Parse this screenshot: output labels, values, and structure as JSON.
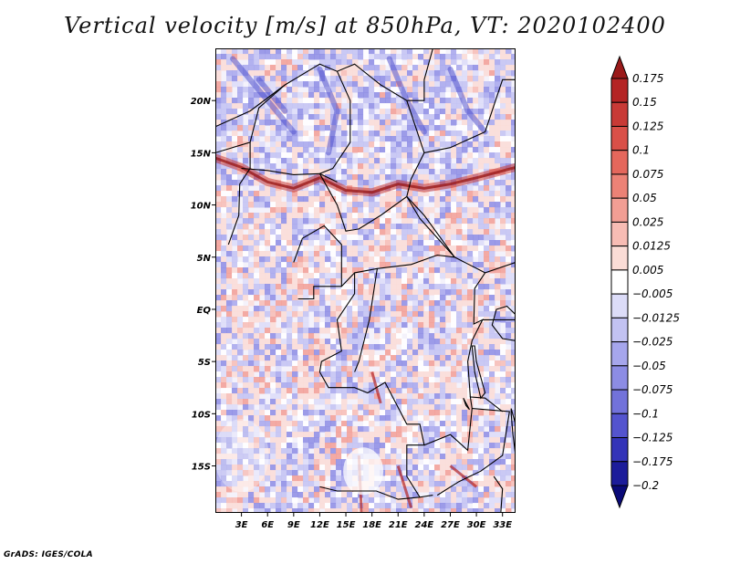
{
  "title": "Vertical velocity [m/s] at 850hPa, VT: 2020102400",
  "credit": "GrADS: IGES/COLA",
  "map": {
    "lon_range": [
      0,
      34.5
    ],
    "lat_range": [
      -19.5,
      25
    ],
    "lat_ticks": [
      {
        "value": 20,
        "label": "20N"
      },
      {
        "value": 15,
        "label": "15N"
      },
      {
        "value": 10,
        "label": "10N"
      },
      {
        "value": 5,
        "label": "5N"
      },
      {
        "value": 0,
        "label": "EQ"
      },
      {
        "value": -5,
        "label": "5S"
      },
      {
        "value": -10,
        "label": "10S"
      },
      {
        "value": -15,
        "label": "15S"
      }
    ],
    "lon_ticks": [
      {
        "value": 3,
        "label": "3E"
      },
      {
        "value": 6,
        "label": "6E"
      },
      {
        "value": 9,
        "label": "9E"
      },
      {
        "value": 12,
        "label": "12E"
      },
      {
        "value": 15,
        "label": "15E"
      },
      {
        "value": 18,
        "label": "18E"
      },
      {
        "value": 21,
        "label": "21E"
      },
      {
        "value": 24,
        "label": "24E"
      },
      {
        "value": 27,
        "label": "27E"
      },
      {
        "value": 30,
        "label": "30E"
      },
      {
        "value": 33,
        "label": "33E"
      }
    ]
  },
  "colorbar": {
    "labels": [
      "0.175",
      "0.15",
      "0.125",
      "0.1",
      "0.075",
      "0.05",
      "0.025",
      "0.0125",
      "0.005",
      "−0.005",
      "−0.0125",
      "−0.025",
      "−0.05",
      "−0.075",
      "−0.1",
      "−0.125",
      "−0.175",
      "−0.2"
    ],
    "colors": [
      "#9a1a1a",
      "#b42424",
      "#c83a36",
      "#d95048",
      "#e4675c",
      "#ec8276",
      "#f29e94",
      "#f7bcb4",
      "#fadcd6",
      "#ffffff",
      "#dcdcf8",
      "#c2c2f2",
      "#a6a6ec",
      "#8c8ce4",
      "#7272da",
      "#5454ce",
      "#3434b8",
      "#1c1c9a",
      "#0a0a78"
    ]
  }
}
